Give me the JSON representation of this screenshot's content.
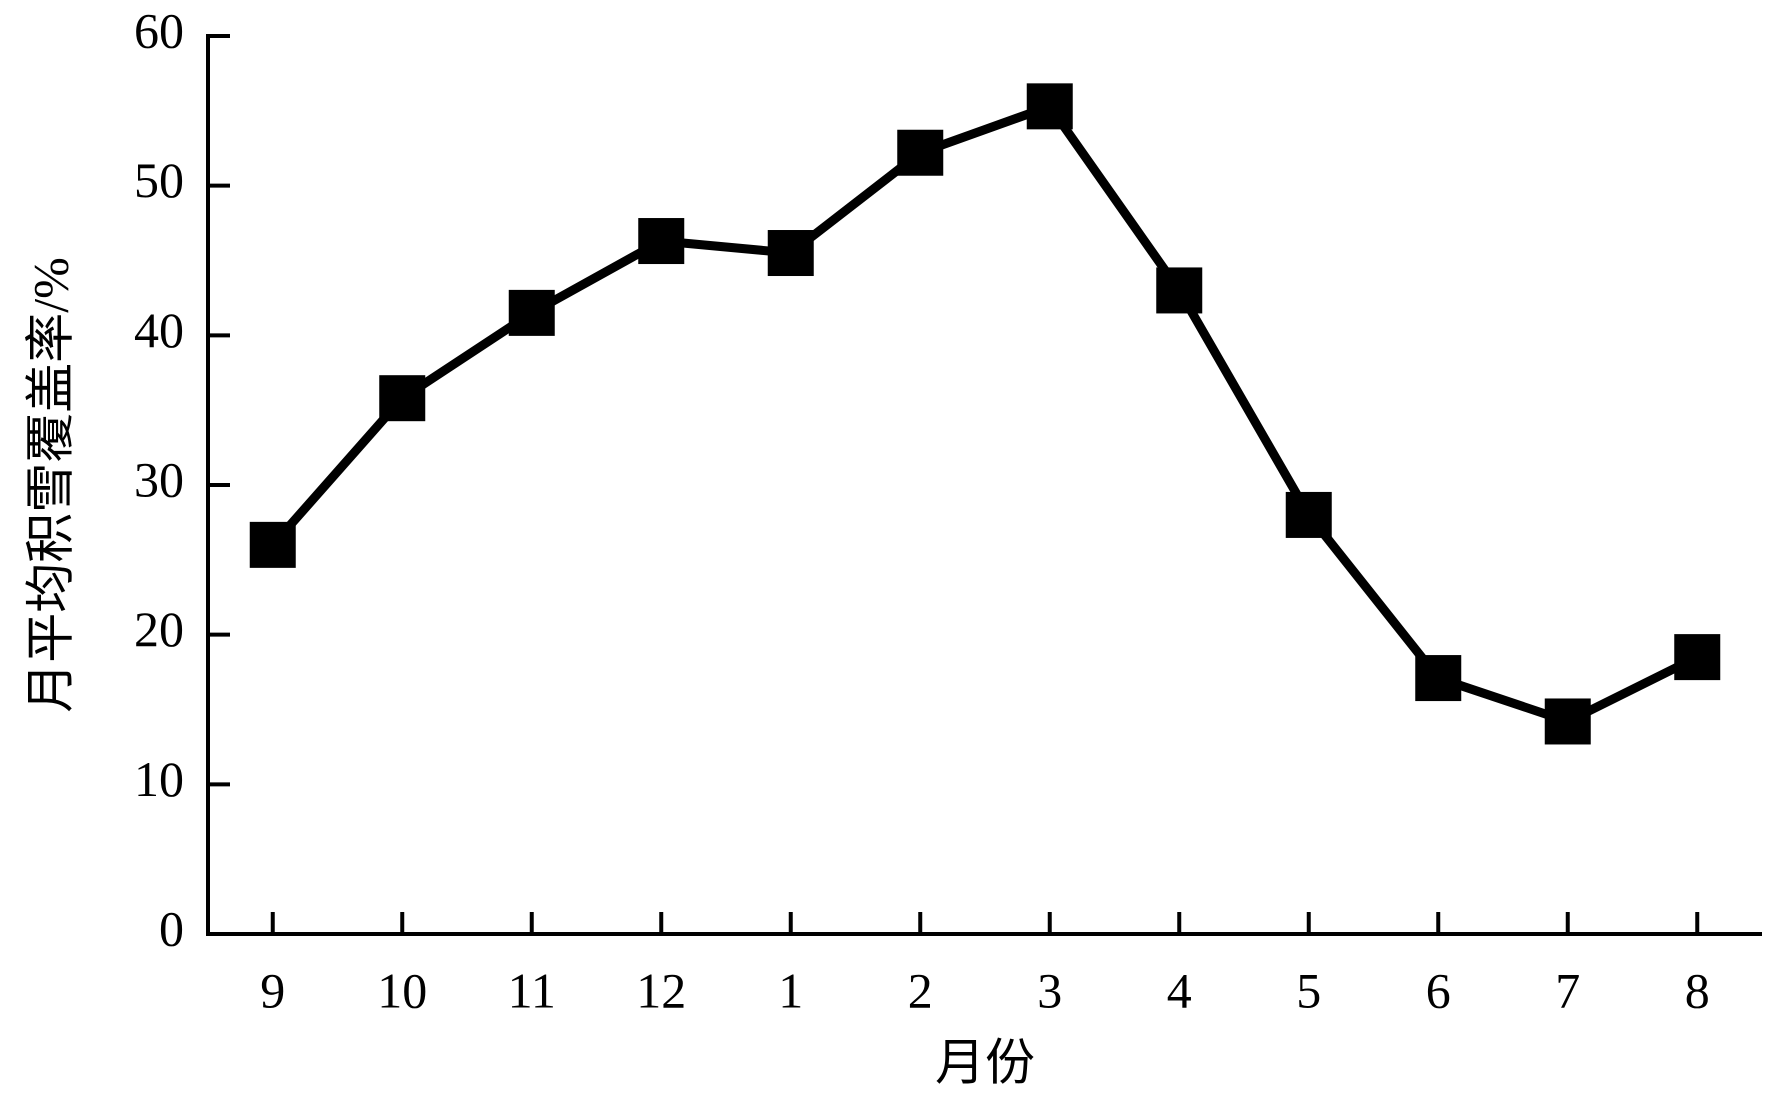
{
  "chart_data": {
    "type": "line",
    "y_label": "月平均积雪覆盖率/%",
    "x_label": "月份",
    "categories": [
      "9",
      "10",
      "11",
      "12",
      "1",
      "2",
      "3",
      "4",
      "5",
      "6",
      "7",
      "8"
    ],
    "values": [
      26,
      35.8,
      41.5,
      46.3,
      45.5,
      52.2,
      55.3,
      43,
      28,
      17.1,
      14.2,
      18.5
    ],
    "color": "#000000",
    "ylim": [
      0,
      60
    ],
    "yticks": [
      0,
      10,
      20,
      30,
      40,
      50,
      60
    ],
    "grid": false
  }
}
